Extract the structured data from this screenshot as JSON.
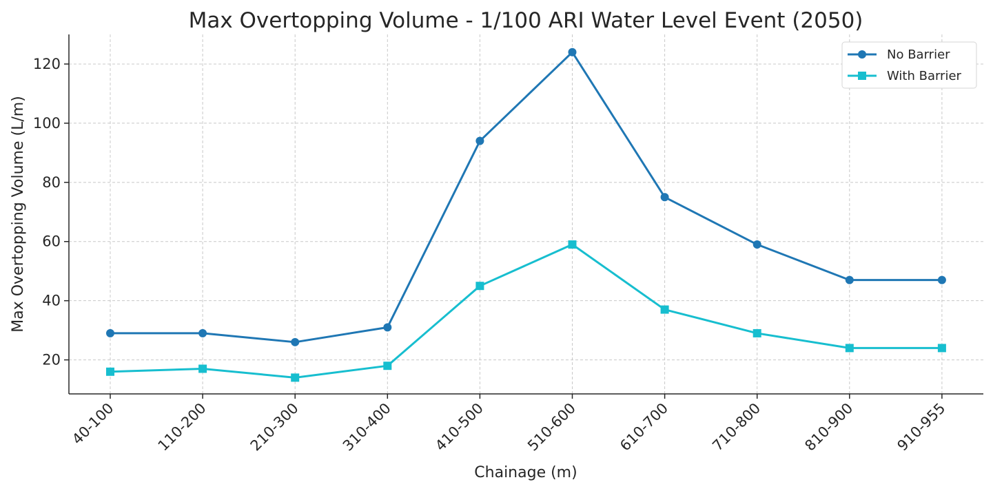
{
  "chart_data": {
    "type": "line",
    "title": "Max Overtopping Volume - 1/100 ARI Water Level Event (2050)",
    "xlabel": "Chainage (m)",
    "ylabel": "Max Overtopping Volume (L/m)",
    "categories": [
      "40-100",
      "110-200",
      "210-300",
      "310-400",
      "410-500",
      "510-600",
      "610-700",
      "710-800",
      "810-900",
      "910-955"
    ],
    "series": [
      {
        "name": "No Barrier",
        "values": [
          29,
          29,
          26,
          31,
          94,
          124,
          75,
          59,
          47,
          47
        ],
        "color": "#1f77b4",
        "marker": "circle"
      },
      {
        "name": "With Barrier",
        "values": [
          16,
          17,
          14,
          18,
          45,
          59,
          37,
          29,
          24,
          24
        ],
        "color": "#17becf",
        "marker": "square"
      }
    ],
    "ylim": [
      8.5,
      130
    ],
    "yticks": [
      20,
      40,
      60,
      80,
      100,
      120
    ],
    "grid": true,
    "legend_position": "top-right"
  }
}
